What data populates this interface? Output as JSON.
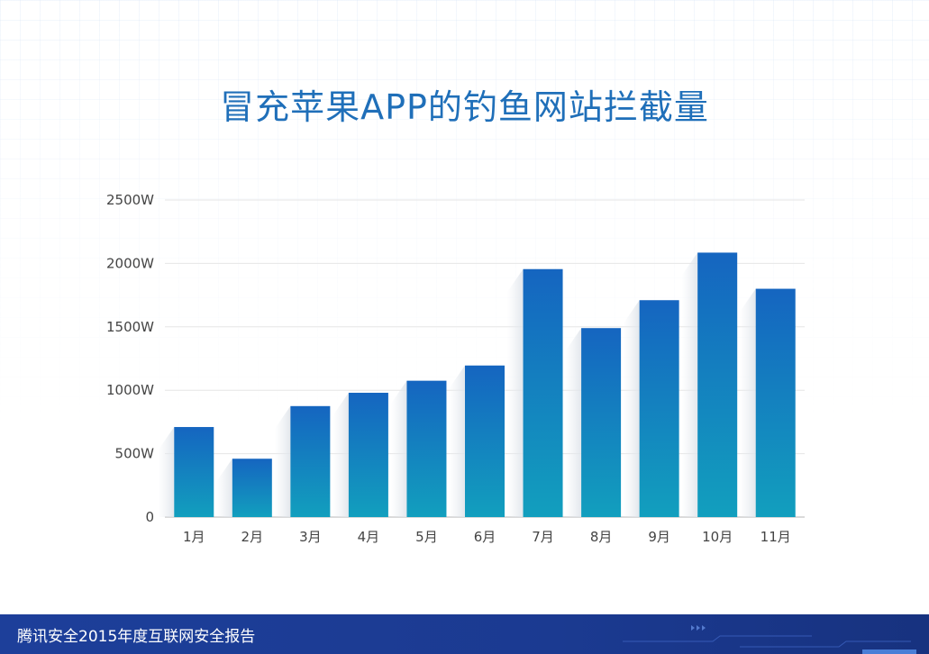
{
  "title": "冒充苹果APP的钓鱼网站拦截量",
  "footer": {
    "text": "腾讯安全2015年度互联网安全报告"
  },
  "colors": {
    "bar_top": "#1565c0",
    "bar_bottom": "#129fbe",
    "title": "#1f6fb9",
    "footer_bg": "#1d3f9a"
  },
  "chart_data": {
    "type": "bar",
    "categories": [
      "1月",
      "2月",
      "3月",
      "4月",
      "5月",
      "6月",
      "7月",
      "8月",
      "9月",
      "10月",
      "11月"
    ],
    "values": [
      710,
      460,
      875,
      980,
      1075,
      1195,
      1955,
      1490,
      1710,
      2085,
      1800
    ],
    "unit": "W",
    "ylim": [
      0,
      2500
    ],
    "yticks": [
      0,
      500,
      1000,
      1500,
      2000,
      2500
    ],
    "ytick_labels": [
      "0",
      "500W",
      "1000W",
      "1500W",
      "2000W",
      "2500W"
    ],
    "grid": true
  }
}
